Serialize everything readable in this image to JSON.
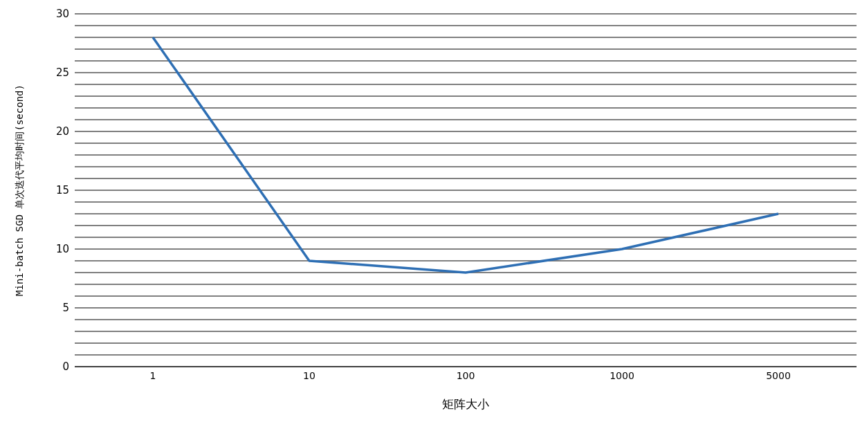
{
  "chart_data": {
    "type": "line",
    "xlabel": "矩阵大小",
    "ylabel": "Mini-batch SGD 单次迭代平均时间(second)",
    "categories": [
      "1",
      "10",
      "100",
      "1000",
      "5000"
    ],
    "series": [
      {
        "color": "#2e6fb4",
        "values": [
          28,
          9,
          8,
          10,
          13
        ]
      }
    ],
    "ylim": [
      0,
      30
    ],
    "yticks": [
      0,
      {
        "value": 1,
        "label": null
      },
      {
        "value": 2,
        "label": null
      },
      {
        "value": 3,
        "label": null
      },
      {
        "value": 4,
        "label": null
      },
      5,
      {
        "value": 6,
        "label": null
      },
      {
        "value": 7,
        "label": null
      },
      {
        "value": 8,
        "label": null
      },
      {
        "value": 9,
        "label": null
      },
      10,
      {
        "value": 11,
        "label": null
      },
      {
        "value": 12,
        "label": null
      },
      {
        "value": 13,
        "label": null
      },
      {
        "value": 14,
        "label": null
      },
      15,
      {
        "value": 16,
        "label": null
      },
      {
        "value": 17,
        "label": null
      },
      {
        "value": 18,
        "label": null
      },
      {
        "value": 19,
        "label": null
      },
      20,
      {
        "value": 21,
        "label": null
      },
      {
        "value": 22,
        "label": null
      },
      {
        "value": 23,
        "label": null
      },
      {
        "value": 24,
        "label": null
      },
      25,
      {
        "value": 26,
        "label": null
      },
      {
        "value": 27,
        "label": null
      },
      {
        "value": 28,
        "label": null
      },
      {
        "value": 29,
        "label": null
      },
      30
    ],
    "grid": "y",
    "legend": false,
    "marker": "none",
    "line_style": "solid"
  }
}
